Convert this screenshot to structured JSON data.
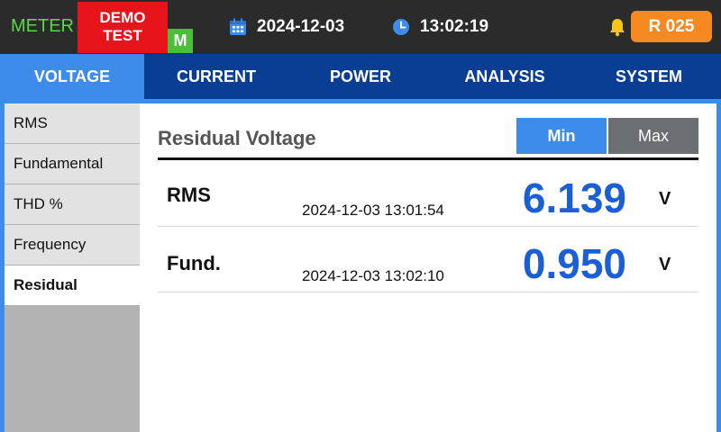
{
  "header": {
    "meter_label": "METER",
    "demo_badge": "DEMO\nTEST",
    "mode_badge": "M",
    "date": "2024-12-03",
    "time": "13:02:19",
    "record_badge": "R 025",
    "icons": [
      "calendar-icon",
      "clock-icon",
      "bell-icon"
    ]
  },
  "tabs": [
    {
      "label": "VOLTAGE",
      "active": true
    },
    {
      "label": "CURRENT",
      "active": false
    },
    {
      "label": "POWER",
      "active": false
    },
    {
      "label": "ANALYSIS",
      "active": false
    },
    {
      "label": "SYSTEM",
      "active": false
    }
  ],
  "sidebar": {
    "items": [
      {
        "label": "RMS",
        "active": false
      },
      {
        "label": "Fundamental",
        "active": false
      },
      {
        "label": "THD %",
        "active": false
      },
      {
        "label": "Frequency",
        "active": false
      },
      {
        "label": "Residual",
        "active": true
      }
    ]
  },
  "panel": {
    "title": "Residual Voltage",
    "min_label": "Min",
    "max_label": "Max",
    "selected": "Min",
    "rows": [
      {
        "name": "RMS",
        "timestamp": "2024-12-03 13:01:54",
        "value": "6.139",
        "unit": "V"
      },
      {
        "name": "Fund.",
        "timestamp": "2024-12-03 13:02:10",
        "value": "0.950",
        "unit": "V"
      }
    ]
  },
  "colors": {
    "tab_bar": "#0a3d94",
    "accent": "#3d8bea",
    "value_blue": "#1a5fd6",
    "demo_red": "#e8141c",
    "record_orange": "#f6891f",
    "mode_green": "#4cbf3a"
  }
}
